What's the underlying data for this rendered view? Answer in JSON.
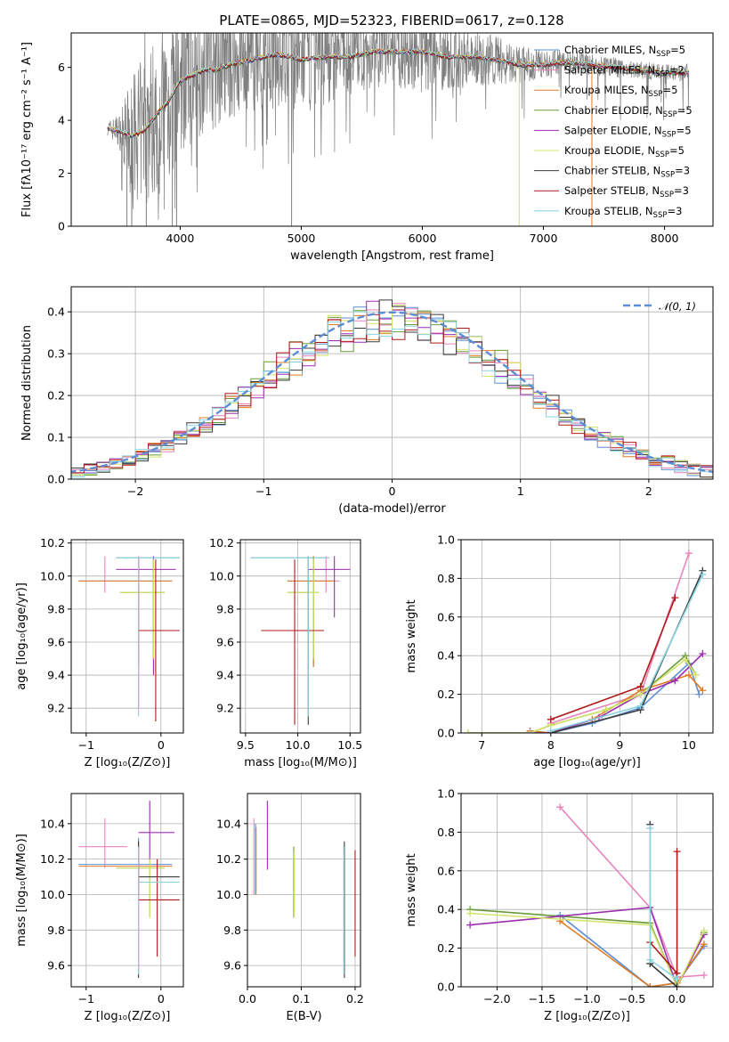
{
  "figure": {
    "title": "PLATE=0865, MJD=52323, FIBERID=0617, z=0.128"
  },
  "colors": {
    "data": "#7f7f7f",
    "series": [
      "#5b8ed6",
      "#e783bd",
      "#e07b22",
      "#6b9a3b",
      "#9b2fb0",
      "#d4e46b",
      "#3a3a3a",
      "#b01a1a",
      "#8ad4e0"
    ],
    "gauss": "#5b8ed6"
  },
  "chart_data": [
    {
      "id": "spectrum",
      "type": "line",
      "xlabel": "wavelength [Angstrom, rest frame]",
      "ylabel": "Flux [fλ10⁻¹⁷ erg cm⁻² s⁻¹ A⁻¹]",
      "xlim": [
        3100,
        8400
      ],
      "ylim": [
        0,
        7.3
      ],
      "xticks": [
        4000,
        5000,
        6000,
        7000,
        8000
      ],
      "yticks": [
        0,
        2,
        4,
        6
      ],
      "legend_position": "upper-right",
      "legend": [
        "Chabrier MILES, N_SSP=5",
        "Salpeter MILES, N_SSP=2",
        "Kroupa MILES, N_SSP=5",
        "Chabrier ELODIE, N_SSP=5",
        "Salpeter ELODIE, N_SSP=5",
        "Kroupa ELODIE, N_SSP=5",
        "Chabrier STELIB, N_SSP=3",
        "Salpeter STELIB, N_SSP=3",
        "Kroupa STELIB, N_SSP=3"
      ],
      "model_curve": {
        "x": [
          3400,
          3500,
          3600,
          3700,
          3800,
          3900,
          4000,
          4100,
          4200,
          4300,
          4400,
          4600,
          4800,
          5000,
          5200,
          5400,
          5600,
          5800,
          6000,
          6200,
          6400,
          6600,
          6800,
          7000,
          7200,
          7400,
          7600,
          7800,
          8000,
          8200
        ],
        "y": [
          3.7,
          3.6,
          3.4,
          3.6,
          4.2,
          4.7,
          5.5,
          5.7,
          5.9,
          5.9,
          6.1,
          6.3,
          6.5,
          6.3,
          6.4,
          6.4,
          6.6,
          6.6,
          6.6,
          6.4,
          6.4,
          6.3,
          6.1,
          6.1,
          6.2,
          6.1,
          6.0,
          5.9,
          5.8,
          5.8
        ]
      },
      "data_envelope": {
        "x": [
          3400,
          3500,
          3600,
          3700,
          3800,
          3900,
          4000,
          4200,
          4400,
          4600,
          4800,
          5000,
          5200,
          5400,
          5600,
          5800,
          6000,
          6200,
          6400,
          6600,
          6800,
          7000,
          7200,
          7400,
          7600,
          7800,
          8000,
          8200
        ],
        "low": [
          3.4,
          3.0,
          1.5,
          2.0,
          1.5,
          1.5,
          2.0,
          3.0,
          3.5,
          3.7,
          3.5,
          3.5,
          4.0,
          4.5,
          4.8,
          4.8,
          4.5,
          5.0,
          5.2,
          5.3,
          5.5,
          5.5,
          5.6,
          5.6,
          5.5,
          5.5,
          5.4,
          5.4
        ],
        "high": [
          3.9,
          4.2,
          5.5,
          7.3,
          7.3,
          7.3,
          7.3,
          7.3,
          7.3,
          7.3,
          7.3,
          7.3,
          7.3,
          7.3,
          7.3,
          7.3,
          7.3,
          7.3,
          7.3,
          7.0,
          6.8,
          6.5,
          6.5,
          6.3,
          6.2,
          6.1,
          6.0,
          6.0
        ]
      }
    },
    {
      "id": "residuals",
      "type": "histogram",
      "xlabel": "(data-model)/error",
      "ylabel": "Normed distribution",
      "xlim": [
        -2.5,
        2.5
      ],
      "ylim": [
        0,
        0.46
      ],
      "xticks": [
        -2,
        -1,
        0,
        1,
        2
      ],
      "yticks": [
        0.0,
        0.1,
        0.2,
        0.3,
        0.4
      ],
      "legend_position": "upper-right",
      "gauss_label": "𝒩(0, 1)",
      "bin_width": 0.1
    },
    {
      "id": "age-vs-Z",
      "type": "errorbar",
      "xlabel": "Z [log₁₀(Z/Z⊙)]",
      "ylabel": "age  [log₁₀(age/yr)]",
      "xlim": [
        -1.2,
        0.3
      ],
      "ylim": [
        9.05,
        10.22
      ],
      "xticks": [
        -1,
        0
      ],
      "yticks": [
        9.2,
        9.4,
        9.6,
        9.8,
        10.0,
        10.2
      ],
      "points": [
        {
          "x": -0.3,
          "xlo": -1.1,
          "xhi": 0.15,
          "y": 9.97,
          "ylo": 9.45,
          "yhi": 10.12
        },
        {
          "x": -0.75,
          "xlo": -1.1,
          "xhi": -0.45,
          "y": 9.97,
          "ylo": 9.9,
          "yhi": 10.12
        },
        {
          "x": -0.3,
          "xlo": -1.1,
          "xhi": 0.15,
          "y": 9.97,
          "ylo": 9.45,
          "yhi": 10.12
        },
        {
          "x": -0.1,
          "xlo": -0.55,
          "xhi": 0.05,
          "y": 9.9,
          "ylo": 9.5,
          "yhi": 10.1
        },
        {
          "x": -0.1,
          "xlo": -0.6,
          "xhi": 0.2,
          "y": 10.04,
          "ylo": 9.4,
          "yhi": 10.12
        },
        {
          "x": -0.1,
          "xlo": -0.55,
          "xhi": 0.05,
          "y": 9.9,
          "ylo": 9.5,
          "yhi": 10.1
        },
        {
          "x": -0.3,
          "xlo": -0.6,
          "xhi": 0.25,
          "y": 10.11,
          "ylo": 9.2,
          "yhi": 10.12
        },
        {
          "x": -0.07,
          "xlo": -0.3,
          "xhi": 0.25,
          "y": 9.67,
          "ylo": 9.12,
          "yhi": 10.1
        },
        {
          "x": -0.3,
          "xlo": -0.6,
          "xhi": 0.25,
          "y": 10.11,
          "ylo": 9.15,
          "yhi": 10.12
        }
      ]
    },
    {
      "id": "age-vs-mass",
      "type": "errorbar",
      "xlabel": "mass [log₁₀(M/M⊙)]",
      "ylabel": "",
      "xlim": [
        9.45,
        10.6
      ],
      "ylim": [
        9.05,
        10.22
      ],
      "xticks": [
        9.5,
        10.0,
        10.5
      ],
      "yticks": [
        9.2,
        9.4,
        9.6,
        9.8,
        10.0,
        10.2
      ],
      "points": [
        {
          "x": 10.15,
          "xlo": 9.9,
          "xhi": 10.35,
          "y": 9.97,
          "ylo": 9.45,
          "yhi": 10.12
        },
        {
          "x": 10.27,
          "xlo": 10.1,
          "xhi": 10.4,
          "y": 9.97,
          "ylo": 9.9,
          "yhi": 10.12
        },
        {
          "x": 10.15,
          "xlo": 9.9,
          "xhi": 10.35,
          "y": 9.97,
          "ylo": 9.45,
          "yhi": 10.12
        },
        {
          "x": 10.15,
          "xlo": 9.9,
          "xhi": 10.2,
          "y": 9.9,
          "ylo": 9.5,
          "yhi": 10.1
        },
        {
          "x": 10.35,
          "xlo": 10.1,
          "xhi": 10.5,
          "y": 10.04,
          "ylo": 9.75,
          "yhi": 10.12
        },
        {
          "x": 10.15,
          "xlo": 9.9,
          "xhi": 10.2,
          "y": 9.9,
          "ylo": 9.5,
          "yhi": 10.1
        },
        {
          "x": 10.1,
          "xlo": 9.55,
          "xhi": 10.3,
          "y": 10.11,
          "ylo": 9.1,
          "yhi": 10.12
        },
        {
          "x": 9.97,
          "xlo": 9.65,
          "xhi": 10.25,
          "y": 9.67,
          "ylo": 9.1,
          "yhi": 10.1
        },
        {
          "x": 10.1,
          "xlo": 9.55,
          "xhi": 10.3,
          "y": 10.11,
          "ylo": 9.15,
          "yhi": 10.12
        }
      ]
    },
    {
      "id": "mass-weight-vs-age",
      "type": "line",
      "xlabel": "age  [log₁₀(age/yr)]",
      "ylabel": "mass weight",
      "xlim": [
        6.7,
        10.35
      ],
      "ylim": [
        0,
        1.0
      ],
      "xticks": [
        7,
        8,
        9,
        10
      ],
      "yticks": [
        0.0,
        0.2,
        0.4,
        0.6,
        0.8,
        1.0
      ],
      "series": [
        {
          "x": [
            7.7,
            8.0,
            8.6,
            9.3,
            10.0,
            10.15
          ],
          "y": [
            0.01,
            0.0,
            0.05,
            0.13,
            0.36,
            0.2
          ]
        },
        {
          "x": [
            8.0,
            9.3,
            10.0
          ],
          "y": [
            0.05,
            0.2,
            0.93
          ]
        },
        {
          "x": [
            7.7,
            8.0,
            8.6,
            9.3,
            10.0,
            10.2
          ],
          "y": [
            0.01,
            0.0,
            0.07,
            0.22,
            0.3,
            0.22
          ]
        },
        {
          "x": [
            6.8,
            7.7,
            8.0,
            8.8,
            9.3,
            9.95,
            10.1
          ],
          "y": [
            0.0,
            0.0,
            0.04,
            0.12,
            0.2,
            0.4,
            0.3
          ]
        },
        {
          "x": [
            7.7,
            8.0,
            8.7,
            9.3,
            9.8,
            10.2
          ],
          "y": [
            0.0,
            0.0,
            0.08,
            0.2,
            0.27,
            0.41
          ]
        },
        {
          "x": [
            6.8,
            7.7,
            8.0,
            8.8,
            9.3,
            9.95,
            10.1
          ],
          "y": [
            0.0,
            0.0,
            0.04,
            0.12,
            0.2,
            0.38,
            0.3
          ]
        },
        {
          "x": [
            8.0,
            9.3,
            10.2
          ],
          "y": [
            0.0,
            0.12,
            0.84
          ]
        },
        {
          "x": [
            8.0,
            9.3,
            9.8
          ],
          "y": [
            0.07,
            0.24,
            0.7
          ]
        },
        {
          "x": [
            8.0,
            9.3,
            10.2
          ],
          "y": [
            0.01,
            0.14,
            0.82
          ]
        }
      ]
    },
    {
      "id": "mass-vs-Z",
      "type": "errorbar",
      "xlabel": "Z [log₁₀(Z/Z⊙)]",
      "ylabel": "mass [log₁₀(M/M⊙)]",
      "xlim": [
        -1.2,
        0.3
      ],
      "ylim": [
        9.48,
        10.57
      ],
      "xticks": [
        -1,
        0
      ],
      "yticks": [
        9.6,
        9.8,
        10.0,
        10.2,
        10.4
      ],
      "points": [
        {
          "x": -0.3,
          "xlo": -1.1,
          "xhi": 0.15,
          "y": 10.17,
          "ylo": 10.0,
          "yhi": 10.32
        },
        {
          "x": -0.75,
          "xlo": -1.1,
          "xhi": -0.45,
          "y": 10.27,
          "ylo": 10.15,
          "yhi": 10.43
        },
        {
          "x": -0.3,
          "xlo": -1.1,
          "xhi": 0.15,
          "y": 10.16,
          "ylo": 10.0,
          "yhi": 10.3
        },
        {
          "x": -0.15,
          "xlo": -0.6,
          "xhi": 0.05,
          "y": 10.15,
          "ylo": 9.87,
          "yhi": 10.2
        },
        {
          "x": -0.15,
          "xlo": -0.3,
          "xhi": 0.18,
          "y": 10.35,
          "ylo": 10.2,
          "yhi": 10.53
        },
        {
          "x": -0.15,
          "xlo": -0.6,
          "xhi": 0.05,
          "y": 10.15,
          "ylo": 9.87,
          "yhi": 10.2
        },
        {
          "x": -0.3,
          "xlo": -0.3,
          "xhi": 0.25,
          "y": 10.1,
          "ylo": 9.53,
          "yhi": 10.3
        },
        {
          "x": -0.05,
          "xlo": -0.3,
          "xhi": 0.25,
          "y": 9.97,
          "ylo": 9.65,
          "yhi": 10.2
        },
        {
          "x": -0.3,
          "xlo": -0.3,
          "xhi": 0.25,
          "y": 10.07,
          "ylo": 9.55,
          "yhi": 10.27
        }
      ]
    },
    {
      "id": "mass-vs-EBV",
      "type": "errorbar",
      "xlabel": "E(B-V)",
      "ylabel": "",
      "xlim": [
        0.0,
        0.21
      ],
      "ylim": [
        9.48,
        10.57
      ],
      "xticks": [
        0.0,
        0.1,
        0.2
      ],
      "yticks": [
        9.6,
        9.8,
        10.0,
        10.2,
        10.4
      ],
      "points": [
        {
          "x": 0.015,
          "xlo": 0.015,
          "xhi": 0.015,
          "y": 10.17,
          "ylo": 10.0,
          "yhi": 10.4
        },
        {
          "x": 0.012,
          "xlo": 0.012,
          "xhi": 0.012,
          "y": 10.27,
          "ylo": 10.0,
          "yhi": 10.43
        },
        {
          "x": 0.016,
          "xlo": 0.016,
          "xhi": 0.016,
          "y": 10.16,
          "ylo": 10.0,
          "yhi": 10.38
        },
        {
          "x": 0.086,
          "xlo": 0.086,
          "xhi": 0.086,
          "y": 10.15,
          "ylo": 9.87,
          "yhi": 10.27
        },
        {
          "x": 0.037,
          "xlo": 0.037,
          "xhi": 0.037,
          "y": 10.35,
          "ylo": 10.14,
          "yhi": 10.53
        },
        {
          "x": 0.087,
          "xlo": 0.087,
          "xhi": 0.087,
          "y": 10.15,
          "ylo": 9.87,
          "yhi": 10.25
        },
        {
          "x": 0.18,
          "xlo": 0.18,
          "xhi": 0.18,
          "y": 10.1,
          "ylo": 9.53,
          "yhi": 10.3
        },
        {
          "x": 0.2,
          "xlo": 0.2,
          "xhi": 0.2,
          "y": 9.97,
          "ylo": 9.65,
          "yhi": 10.25
        },
        {
          "x": 0.179,
          "xlo": 0.179,
          "xhi": 0.179,
          "y": 10.07,
          "ylo": 9.55,
          "yhi": 10.27
        }
      ]
    },
    {
      "id": "mass-weight-vs-Z",
      "type": "line",
      "xlabel": "Z [log₁₀(Z/Z⊙)]",
      "ylabel": "mass weight",
      "xlim": [
        -2.4,
        0.4
      ],
      "ylim": [
        0,
        1.0
      ],
      "xticks": [
        -2.0,
        -1.5,
        -1.0,
        -0.5,
        0.0
      ],
      "yticks": [
        0.0,
        0.2,
        0.4,
        0.6,
        0.8,
        1.0
      ],
      "series": [
        {
          "x": [
            -1.3,
            -0.3,
            0.0,
            0.3
          ],
          "y": [
            0.37,
            0.0,
            0.02,
            0.21
          ]
        },
        {
          "x": [
            -1.3,
            -0.3,
            0.0,
            0.3
          ],
          "y": [
            0.93,
            0.41,
            0.05,
            0.06
          ]
        },
        {
          "x": [
            -1.3,
            -0.3,
            0.0,
            0.3
          ],
          "y": [
            0.34,
            0.0,
            0.02,
            0.22
          ]
        },
        {
          "x": [
            -2.3,
            -0.3,
            0.0,
            0.3
          ],
          "y": [
            0.4,
            0.33,
            0.0,
            0.28
          ]
        },
        {
          "x": [
            -2.3,
            -0.3,
            0.0,
            0.3
          ],
          "y": [
            0.32,
            0.41,
            0.0,
            0.27
          ]
        },
        {
          "x": [
            -2.3,
            -0.3,
            0.0,
            0.3
          ],
          "y": [
            0.38,
            0.32,
            0.0,
            0.29
          ]
        },
        {
          "x": [
            -0.3,
            -0.3,
            0.0
          ],
          "y": [
            0.84,
            0.12,
            0.0
          ]
        },
        {
          "x": [
            -0.3,
            0.0,
            0.0
          ],
          "y": [
            0.23,
            0.07,
            0.7
          ]
        },
        {
          "x": [
            -0.3,
            -0.3,
            0.0
          ],
          "y": [
            0.82,
            0.14,
            0.04
          ]
        }
      ]
    }
  ]
}
